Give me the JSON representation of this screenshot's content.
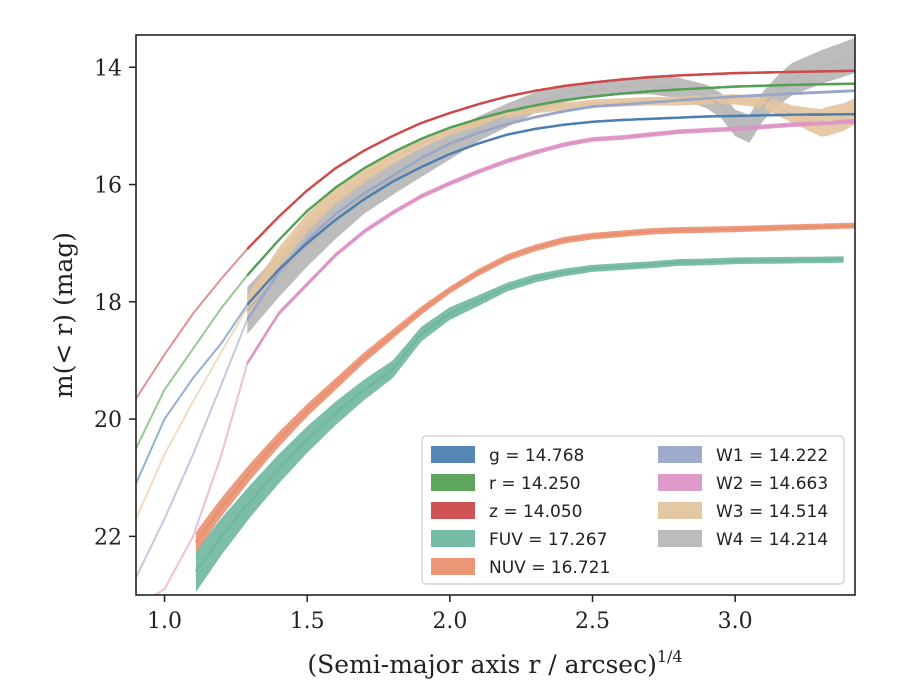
{
  "chart_data": {
    "type": "line",
    "xlabel": "(Semi-major axis r / arcsec)",
    "xlabel_sup": "1/4",
    "ylabel": "m(< r) (mag)",
    "xlim": [
      0.9,
      3.42
    ],
    "ylim": [
      23.0,
      13.45
    ],
    "y_inverted": true,
    "x_ticks": [
      "1.0",
      "1.5",
      "2.0",
      "2.5",
      "3.0"
    ],
    "x_tick_values": [
      1.0,
      1.5,
      2.0,
      2.5,
      3.0
    ],
    "y_ticks": [
      "14",
      "16",
      "18",
      "20",
      "22"
    ],
    "y_tick_values": [
      14,
      16,
      18,
      20,
      22
    ],
    "grid": false,
    "legend_position": "lower-right",
    "series": [
      {
        "name": "g",
        "legend": "g = 14.768",
        "color": "#4c7fb0",
        "x_start": 1.29,
        "points": [
          [
            0.9,
            21.1
          ],
          [
            1.0,
            20.0
          ],
          [
            1.1,
            19.3
          ],
          [
            1.2,
            18.7
          ],
          [
            1.29,
            18.05
          ],
          [
            1.4,
            17.45
          ],
          [
            1.5,
            17.0
          ],
          [
            1.6,
            16.6
          ],
          [
            1.7,
            16.25
          ],
          [
            1.8,
            15.95
          ],
          [
            1.9,
            15.7
          ],
          [
            2.0,
            15.48
          ],
          [
            2.1,
            15.3
          ],
          [
            2.2,
            15.15
          ],
          [
            2.3,
            15.05
          ],
          [
            2.4,
            14.98
          ],
          [
            2.5,
            14.93
          ],
          [
            2.6,
            14.9
          ],
          [
            2.7,
            14.88
          ],
          [
            2.8,
            14.86
          ],
          [
            2.9,
            14.84
          ],
          [
            3.0,
            14.83
          ],
          [
            3.2,
            14.81
          ],
          [
            3.42,
            14.8
          ]
        ],
        "band": 0.04
      },
      {
        "name": "r",
        "legend": "r = 14.250",
        "color": "#55a055",
        "x_start": 1.29,
        "points": [
          [
            0.9,
            20.5
          ],
          [
            1.0,
            19.5
          ],
          [
            1.1,
            18.8
          ],
          [
            1.2,
            18.1
          ],
          [
            1.29,
            17.55
          ],
          [
            1.4,
            16.95
          ],
          [
            1.5,
            16.45
          ],
          [
            1.6,
            16.05
          ],
          [
            1.7,
            15.72
          ],
          [
            1.8,
            15.45
          ],
          [
            1.9,
            15.22
          ],
          [
            2.0,
            15.03
          ],
          [
            2.1,
            14.88
          ],
          [
            2.2,
            14.75
          ],
          [
            2.3,
            14.65
          ],
          [
            2.4,
            14.56
          ],
          [
            2.5,
            14.5
          ],
          [
            2.6,
            14.45
          ],
          [
            2.7,
            14.41
          ],
          [
            2.8,
            14.38
          ],
          [
            3.0,
            14.33
          ],
          [
            3.2,
            14.3
          ],
          [
            3.42,
            14.28
          ]
        ],
        "band": 0.04
      },
      {
        "name": "z",
        "legend": "z = 14.050",
        "color": "#cc4a4a",
        "x_start": 1.29,
        "points": [
          [
            0.9,
            19.65
          ],
          [
            1.0,
            18.9
          ],
          [
            1.1,
            18.2
          ],
          [
            1.2,
            17.6
          ],
          [
            1.29,
            17.1
          ],
          [
            1.4,
            16.55
          ],
          [
            1.5,
            16.1
          ],
          [
            1.6,
            15.72
          ],
          [
            1.7,
            15.42
          ],
          [
            1.8,
            15.17
          ],
          [
            1.9,
            14.95
          ],
          [
            2.0,
            14.78
          ],
          [
            2.1,
            14.63
          ],
          [
            2.2,
            14.5
          ],
          [
            2.3,
            14.4
          ],
          [
            2.4,
            14.32
          ],
          [
            2.5,
            14.26
          ],
          [
            2.6,
            14.21
          ],
          [
            2.7,
            14.17
          ],
          [
            2.8,
            14.14
          ],
          [
            3.0,
            14.1
          ],
          [
            3.2,
            14.08
          ],
          [
            3.42,
            14.06
          ]
        ],
        "band": 0.04
      },
      {
        "name": "FUV",
        "legend": "FUV = 17.267",
        "color": "#6fb7a0",
        "x_start": 1.11,
        "points": [
          [
            1.11,
            22.6
          ],
          [
            1.2,
            22.0
          ],
          [
            1.3,
            21.4
          ],
          [
            1.4,
            20.85
          ],
          [
            1.5,
            20.35
          ],
          [
            1.6,
            19.9
          ],
          [
            1.7,
            19.5
          ],
          [
            1.8,
            19.15
          ],
          [
            1.9,
            18.55
          ],
          [
            2.0,
            18.2
          ],
          [
            2.1,
            17.98
          ],
          [
            2.2,
            17.75
          ],
          [
            2.3,
            17.6
          ],
          [
            2.4,
            17.5
          ],
          [
            2.5,
            17.43
          ],
          [
            2.6,
            17.4
          ],
          [
            2.7,
            17.37
          ],
          [
            2.8,
            17.33
          ],
          [
            2.9,
            17.32
          ],
          [
            3.0,
            17.3
          ],
          [
            3.2,
            17.29
          ],
          [
            3.38,
            17.28
          ]
        ],
        "band_widths": [
          [
            1.11,
            0.7
          ],
          [
            1.3,
            0.55
          ],
          [
            1.6,
            0.4
          ],
          [
            1.9,
            0.25
          ],
          [
            2.2,
            0.15
          ],
          [
            2.5,
            0.12
          ],
          [
            3.38,
            0.11
          ]
        ]
      },
      {
        "name": "NUV",
        "legend": "NUV = 16.721",
        "color": "#ea9070",
        "x_start": 1.11,
        "points": [
          [
            1.11,
            22.1
          ],
          [
            1.2,
            21.5
          ],
          [
            1.3,
            20.9
          ],
          [
            1.4,
            20.35
          ],
          [
            1.5,
            19.85
          ],
          [
            1.6,
            19.4
          ],
          [
            1.7,
            18.95
          ],
          [
            1.8,
            18.55
          ],
          [
            1.9,
            18.15
          ],
          [
            2.0,
            17.8
          ],
          [
            2.1,
            17.5
          ],
          [
            2.2,
            17.25
          ],
          [
            2.3,
            17.08
          ],
          [
            2.4,
            16.95
          ],
          [
            2.5,
            16.88
          ],
          [
            2.6,
            16.84
          ],
          [
            2.7,
            16.8
          ],
          [
            2.8,
            16.78
          ],
          [
            3.0,
            16.76
          ],
          [
            3.2,
            16.73
          ],
          [
            3.42,
            16.7
          ]
        ],
        "band_widths": [
          [
            1.11,
            0.35
          ],
          [
            1.5,
            0.22
          ],
          [
            2.0,
            0.12
          ],
          [
            3.42,
            0.1
          ]
        ]
      },
      {
        "name": "W1",
        "legend": "W1 = 14.222",
        "color": "#9aa6c8",
        "x_start": 1.29,
        "points": [
          [
            0.9,
            22.7
          ],
          [
            1.0,
            21.7
          ],
          [
            1.1,
            20.6
          ],
          [
            1.2,
            19.4
          ],
          [
            1.29,
            18.3
          ],
          [
            1.4,
            17.5
          ],
          [
            1.5,
            16.95
          ],
          [
            1.6,
            16.5
          ],
          [
            1.7,
            16.15
          ],
          [
            1.8,
            15.85
          ],
          [
            1.9,
            15.55
          ],
          [
            2.0,
            15.3
          ],
          [
            2.1,
            15.12
          ],
          [
            2.2,
            14.97
          ],
          [
            2.3,
            14.85
          ],
          [
            2.4,
            14.75
          ],
          [
            2.5,
            14.67
          ],
          [
            2.7,
            14.6
          ],
          [
            3.0,
            14.5
          ],
          [
            3.2,
            14.45
          ],
          [
            3.42,
            14.4
          ]
        ],
        "band": 0.05
      },
      {
        "name": "W2",
        "legend": "W2 = 14.663",
        "color": "#dd95c6",
        "x_start": 1.29,
        "points": [
          [
            0.9,
            23.2
          ],
          [
            1.0,
            22.9
          ],
          [
            1.1,
            22.0
          ],
          [
            1.2,
            20.6
          ],
          [
            1.29,
            19.05
          ],
          [
            1.4,
            18.2
          ],
          [
            1.5,
            17.7
          ],
          [
            1.6,
            17.2
          ],
          [
            1.7,
            16.8
          ],
          [
            1.8,
            16.48
          ],
          [
            1.9,
            16.2
          ],
          [
            2.0,
            15.98
          ],
          [
            2.1,
            15.78
          ],
          [
            2.2,
            15.6
          ],
          [
            2.3,
            15.45
          ],
          [
            2.4,
            15.32
          ],
          [
            2.5,
            15.23
          ],
          [
            2.6,
            15.2
          ],
          [
            2.7,
            15.15
          ],
          [
            2.8,
            15.1
          ],
          [
            3.0,
            15.05
          ],
          [
            3.2,
            14.98
          ],
          [
            3.42,
            14.92
          ]
        ],
        "band": 0.08
      },
      {
        "name": "W3",
        "legend": "W3 = 14.514",
        "color": "#e3c49e",
        "x_start": 1.29,
        "points": [
          [
            0.9,
            21.7
          ],
          [
            1.0,
            20.6
          ],
          [
            1.1,
            19.7
          ],
          [
            1.2,
            18.85
          ],
          [
            1.29,
            18.1
          ],
          [
            1.4,
            17.25
          ],
          [
            1.5,
            16.65
          ],
          [
            1.6,
            16.2
          ],
          [
            1.7,
            15.85
          ],
          [
            1.8,
            15.55
          ],
          [
            1.9,
            15.3
          ],
          [
            2.0,
            15.1
          ],
          [
            2.1,
            14.95
          ],
          [
            2.2,
            14.8
          ],
          [
            2.3,
            14.72
          ],
          [
            2.4,
            14.67
          ],
          [
            2.5,
            14.62
          ],
          [
            2.6,
            14.6
          ],
          [
            2.7,
            14.58
          ],
          [
            2.8,
            14.58
          ],
          [
            2.9,
            14.55
          ],
          [
            3.0,
            14.55
          ],
          [
            3.1,
            14.6
          ],
          [
            3.2,
            14.8
          ],
          [
            3.3,
            14.95
          ],
          [
            3.38,
            14.85
          ],
          [
            3.42,
            14.75
          ]
        ],
        "band_widths": [
          [
            1.29,
            0.4
          ],
          [
            2.0,
            0.12
          ],
          [
            2.8,
            0.15
          ],
          [
            3.05,
            0.18
          ],
          [
            3.2,
            0.3
          ],
          [
            3.32,
            0.5
          ],
          [
            3.42,
            0.45
          ]
        ]
      },
      {
        "name": "W4",
        "legend": "W4 = 14.214",
        "color": "#b8b8b8",
        "x_start": 1.29,
        "points": [
          [
            1.29,
            18.15
          ],
          [
            1.4,
            17.55
          ],
          [
            1.5,
            17.05
          ],
          [
            1.6,
            16.6
          ],
          [
            1.7,
            16.2
          ],
          [
            1.8,
            15.9
          ],
          [
            1.9,
            15.62
          ],
          [
            2.0,
            15.35
          ],
          [
            2.1,
            15.05
          ],
          [
            2.2,
            14.82
          ],
          [
            2.3,
            14.6
          ],
          [
            2.4,
            14.45
          ],
          [
            2.5,
            14.38
          ],
          [
            2.6,
            14.33
          ],
          [
            2.7,
            14.3
          ],
          [
            2.8,
            14.35
          ],
          [
            2.9,
            14.5
          ],
          [
            2.95,
            14.65
          ],
          [
            3.0,
            14.95
          ],
          [
            3.05,
            15.05
          ],
          [
            3.1,
            14.65
          ],
          [
            3.15,
            14.4
          ],
          [
            3.2,
            14.2
          ],
          [
            3.3,
            14.0
          ],
          [
            3.42,
            13.8
          ]
        ],
        "band_widths": [
          [
            1.29,
            0.8
          ],
          [
            1.5,
            0.7
          ],
          [
            1.8,
            0.55
          ],
          [
            2.0,
            0.45
          ],
          [
            2.2,
            0.4
          ],
          [
            2.5,
            0.25
          ],
          [
            2.8,
            0.35
          ],
          [
            3.0,
            0.45
          ],
          [
            3.2,
            0.55
          ],
          [
            3.42,
            0.6
          ]
        ]
      }
    ]
  }
}
